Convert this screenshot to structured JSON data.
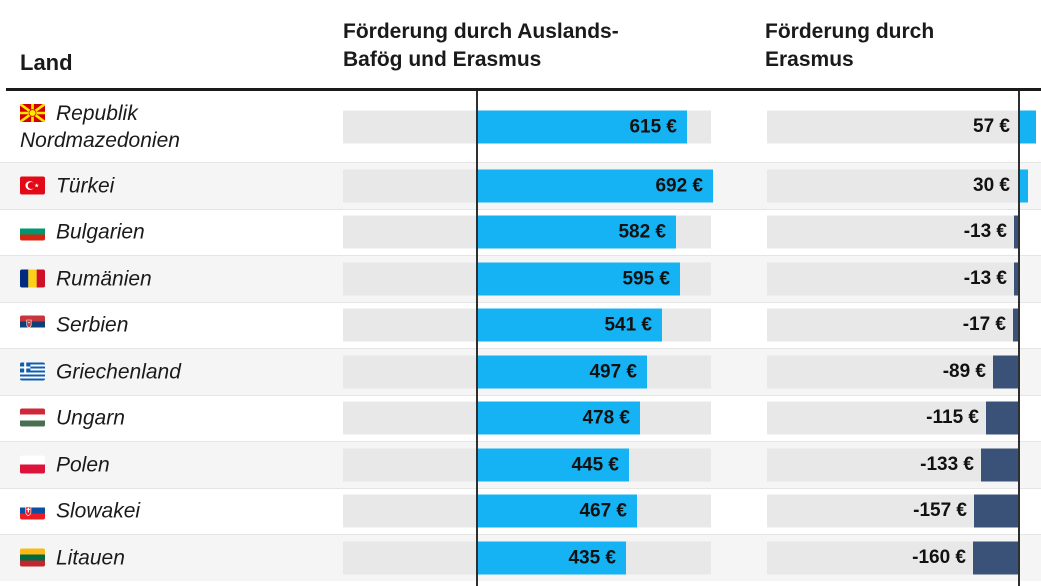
{
  "header": {
    "land": "Land",
    "col1_line1": "Förderung durch Auslands-",
    "col1_line2": "Bafög und Erasmus",
    "col2_line1": "Förderung durch",
    "col2_line2": "Erasmus"
  },
  "colors": {
    "bar_positive": "#16b3f4",
    "bar_negative": "#3a5178",
    "bar_track": "#e8e8e8",
    "row_stripe": "#f5f5f5",
    "axis": "#2f2f2f",
    "header_rule": "#1a1a1a",
    "text": "#1a1a1a"
  },
  "chart_data": {
    "type": "bar",
    "orientation": "horizontal",
    "unit": "€",
    "categories": [
      "Republik Nordmazedonien",
      "Türkei",
      "Bulgarien",
      "Rumänien",
      "Serbien",
      "Griechenland",
      "Ungarn",
      "Polen",
      "Slowakei",
      "Litauen"
    ],
    "flags": [
      "north-macedonia",
      "turkey",
      "bulgaria",
      "romania",
      "serbia",
      "greece",
      "hungary",
      "poland",
      "slovakia",
      "lithuania"
    ],
    "series": [
      {
        "name": "Förderung durch Auslands-Bafög und Erasmus",
        "values": [
          615,
          692,
          582,
          595,
          541,
          497,
          478,
          445,
          467,
          435
        ],
        "labels": [
          "615 €",
          "692 €",
          "582 €",
          "595 €",
          "541 €",
          "497 €",
          "478 €",
          "445 €",
          "467 €",
          "435 €"
        ]
      },
      {
        "name": "Förderung durch Erasmus",
        "values": [
          57,
          30,
          -13,
          -13,
          -17,
          -89,
          -115,
          -133,
          -157,
          -160
        ],
        "labels": [
          "57 €",
          "30 €",
          "-13 €",
          "-13 €",
          "-17 €",
          "-89 €",
          "-115 €",
          "-133 €",
          "-157 €",
          "-160 €"
        ]
      }
    ],
    "layout": {
      "zero_axis_lines": true,
      "row_striping": "alternate",
      "value_labels": "inside-bar (series 1), left of zero axis (series 2)",
      "series1_axis_max": 692,
      "series2_axis_range": [
        -160,
        57
      ],
      "legend": "none",
      "grid": "off"
    }
  }
}
